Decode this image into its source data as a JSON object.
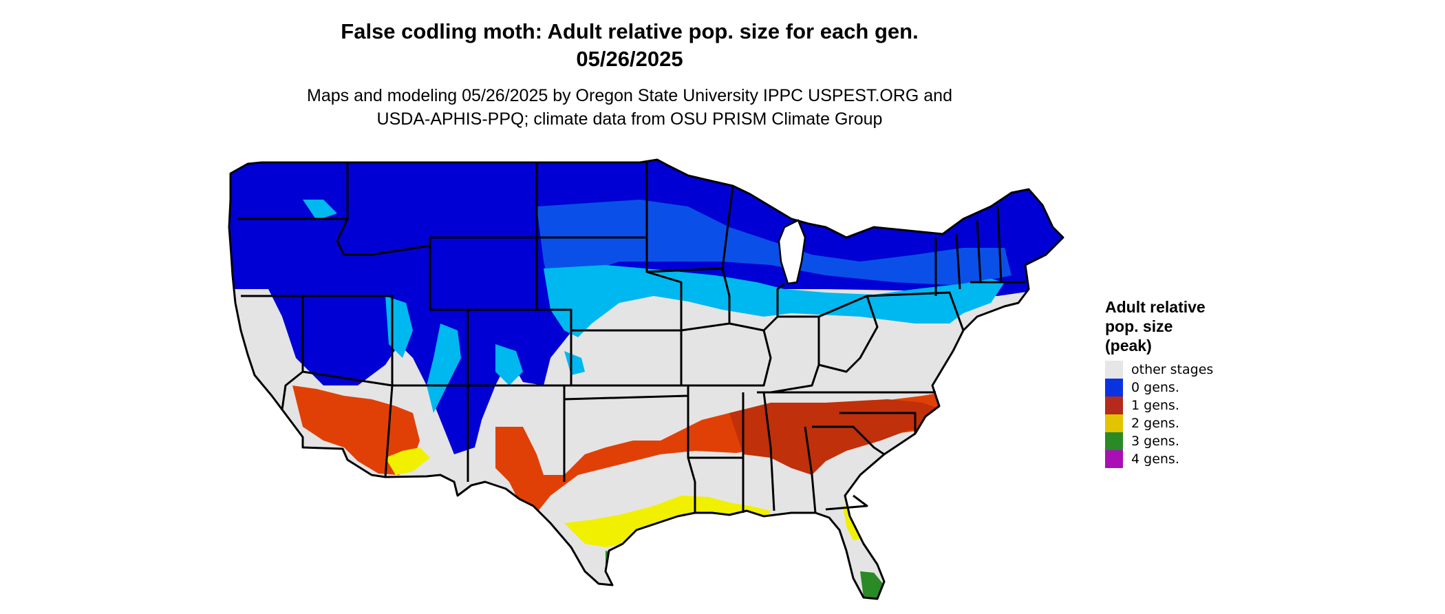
{
  "title_line1": "False codling moth: Adult relative pop. size for each gen.",
  "title_line2": "05/26/2025",
  "subtitle_line1": "Maps and modeling 05/26/2025 by Oregon State University IPPC USPEST.ORG and",
  "subtitle_line2": "USDA-APHIS-PPQ; climate data from OSU PRISM Climate Group",
  "legend": {
    "title_line1": "Adult relative",
    "title_line2": "pop. size",
    "title_line3": "(peak)",
    "items": [
      {
        "label": "other stages",
        "color": "#e6e6e6"
      },
      {
        "label": "0 gens.",
        "color": "#0a33e0"
      },
      {
        "label": "1 gens.",
        "color": "#b52a1c"
      },
      {
        "label": "2 gens.",
        "color": "#e3c400"
      },
      {
        "label": "3 gens.",
        "color": "#2a8a25"
      },
      {
        "label": "4 gens.",
        "color": "#a90fb5"
      }
    ]
  },
  "map_colors": {
    "deep_blue": "#0000d4",
    "mid_blue": "#0a50e8",
    "light_blue": "#00b8f0",
    "gray": "#e4e4e4",
    "orange_red": "#e04006",
    "dark_red": "#c0300a",
    "yellow": "#f0f000",
    "green": "#2a8a25",
    "border": "#000000"
  }
}
